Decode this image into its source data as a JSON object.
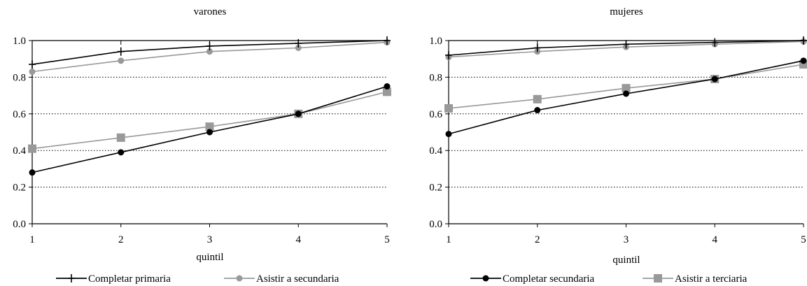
{
  "chart_data": [
    {
      "type": "line",
      "title": "varones",
      "xlabel": "quintil",
      "ylabel": "",
      "x": [
        1,
        2,
        3,
        4,
        5
      ],
      "ylim": [
        0.0,
        1.0
      ],
      "yticks": [
        "0.0",
        "0.2",
        "0.4",
        "0.6",
        "0.8",
        "1.0"
      ],
      "xticks": [
        "1",
        "2",
        "3",
        "4",
        "5"
      ],
      "grid": "horizontal dotted",
      "series": [
        {
          "name": "Completar primaria",
          "values": [
            0.87,
            0.94,
            0.97,
            0.985,
            1.0
          ],
          "color": "#000000",
          "marker": "plus"
        },
        {
          "name": "Asistir a secundaria",
          "values": [
            0.83,
            0.89,
            0.94,
            0.96,
            0.99
          ],
          "color": "#999999",
          "marker": "circle"
        },
        {
          "name": "Completar secundaria",
          "values": [
            0.28,
            0.39,
            0.5,
            0.6,
            0.75
          ],
          "color": "#000000",
          "marker": "circle"
        },
        {
          "name": "Asistir a terciaria",
          "values": [
            0.41,
            0.47,
            0.53,
            0.6,
            0.72
          ],
          "color": "#999999",
          "marker": "square"
        }
      ]
    },
    {
      "type": "line",
      "title": "mujeres",
      "xlabel": "quintil",
      "ylabel": "",
      "x": [
        1,
        2,
        3,
        4,
        5
      ],
      "ylim": [
        0.0,
        1.0
      ],
      "yticks": [
        "0.0",
        "0.2",
        "0.4",
        "0.6",
        "0.8",
        "1.0"
      ],
      "xticks": [
        "1",
        "2",
        "3",
        "4",
        "5"
      ],
      "grid": "horizontal dotted",
      "series": [
        {
          "name": "Completar primaria",
          "values": [
            0.92,
            0.96,
            0.98,
            0.99,
            1.0
          ],
          "color": "#000000",
          "marker": "plus"
        },
        {
          "name": "Asistir a secundaria",
          "values": [
            0.91,
            0.94,
            0.965,
            0.98,
            0.995
          ],
          "color": "#999999",
          "marker": "circle"
        },
        {
          "name": "Completar secundaria",
          "values": [
            0.49,
            0.62,
            0.71,
            0.79,
            0.89
          ],
          "color": "#000000",
          "marker": "circle"
        },
        {
          "name": "Asistir a terciaria",
          "values": [
            0.63,
            0.68,
            0.74,
            0.79,
            0.87
          ],
          "color": "#999999",
          "marker": "square"
        }
      ]
    }
  ],
  "legend": [
    {
      "label": "Completar primaria",
      "color": "#000000",
      "marker": "plus"
    },
    {
      "label": "Asistir a secundaria",
      "color": "#999999",
      "marker": "circle"
    },
    {
      "label": "Completar secundaria",
      "color": "#000000",
      "marker": "circle"
    },
    {
      "label": "Asistir a terciaria",
      "color": "#999999",
      "marker": "square"
    }
  ]
}
